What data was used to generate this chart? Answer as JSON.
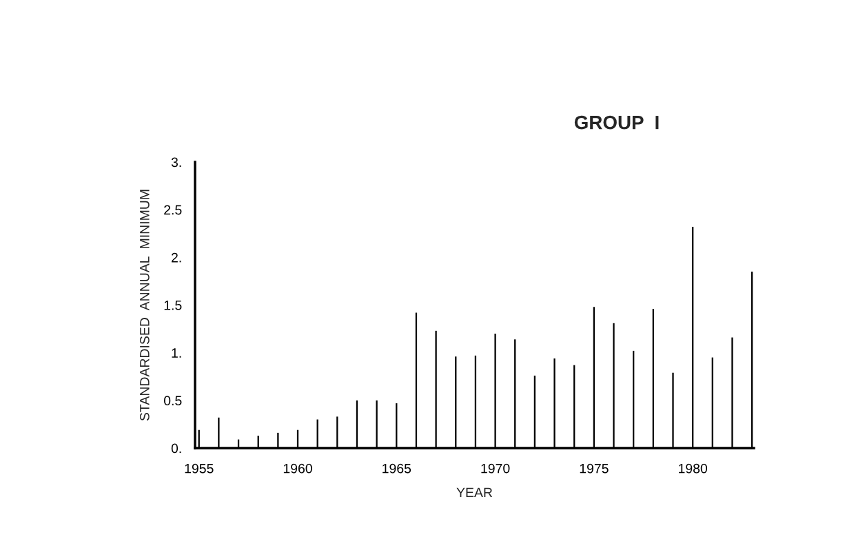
{
  "chart_data": {
    "type": "bar",
    "title": "GROUP  I",
    "xlabel": "YEAR",
    "ylabel": "STANDARDISED  ANNUAL  MINIMUM",
    "x": [
      1955,
      1956,
      1957,
      1958,
      1959,
      1960,
      1961,
      1962,
      1963,
      1964,
      1965,
      1966,
      1967,
      1968,
      1969,
      1970,
      1971,
      1972,
      1973,
      1974,
      1975,
      1976,
      1977,
      1978,
      1979,
      1980,
      1981,
      1982,
      1983
    ],
    "values": [
      0.19,
      0.32,
      0.09,
      0.13,
      0.16,
      0.19,
      0.3,
      0.33,
      0.5,
      0.5,
      0.47,
      1.42,
      1.23,
      0.96,
      0.97,
      1.2,
      1.14,
      0.76,
      0.94,
      0.87,
      1.48,
      1.31,
      1.02,
      1.46,
      0.79,
      2.32,
      0.95,
      1.16,
      1.85
    ],
    "color": "#000000",
    "xlim": [
      1954.8,
      1983.1
    ],
    "xticks": [
      1955,
      1960,
      1965,
      1970,
      1975,
      1980
    ],
    "ylim": [
      0,
      3
    ],
    "yticks": [
      {
        "value": 0,
        "label": "0."
      },
      {
        "value": 0.5,
        "label": "0.5"
      },
      {
        "value": 1,
        "label": "1."
      },
      {
        "value": 1.5,
        "label": "1.5"
      },
      {
        "value": 2,
        "label": "2."
      },
      {
        "value": 2.5,
        "label": "2.5"
      },
      {
        "value": 3,
        "label": "3."
      }
    ],
    "grid": false,
    "legend": false
  }
}
